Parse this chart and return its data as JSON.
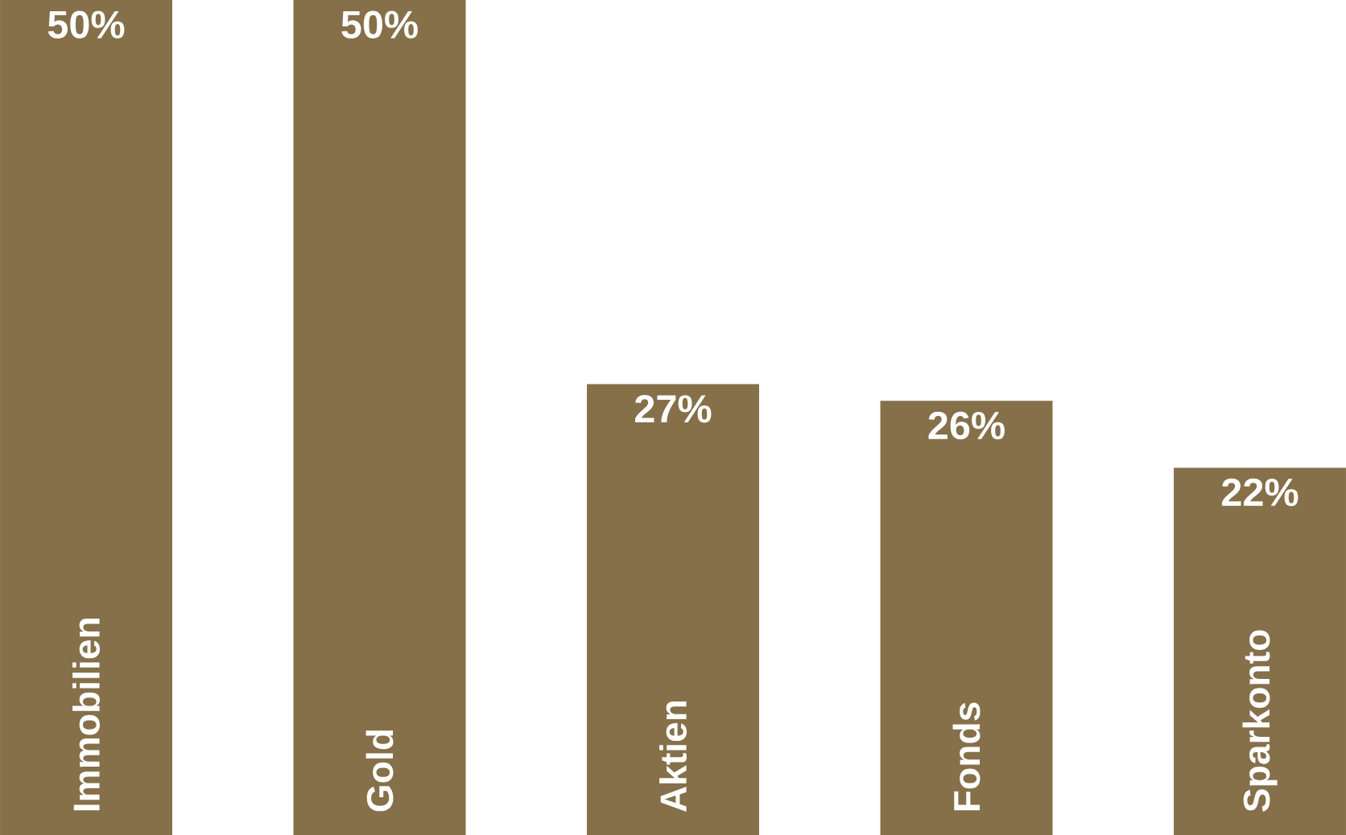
{
  "chart_data": {
    "type": "bar",
    "categories": [
      "Immobilien",
      "Gold",
      "Aktien",
      "Fonds",
      "Sparkonto"
    ],
    "values": [
      50,
      50,
      27,
      26,
      22
    ],
    "value_labels": [
      "50%",
      "50%",
      "27%",
      "26%",
      "22%"
    ],
    "color": "#85704a"
  }
}
